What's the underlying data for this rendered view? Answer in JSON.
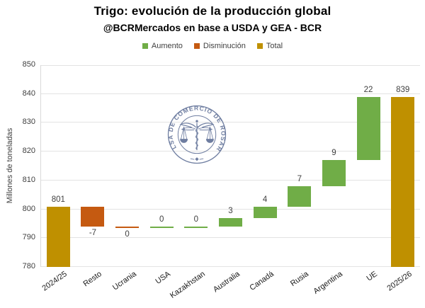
{
  "watermark": {
    "text": "BOLSA DE COMERCIO DE ROSARIO",
    "color": "#5B6C94"
  },
  "chart_data": {
    "type": "bar",
    "subtype": "waterfall",
    "title": "Trigo: evolución de la producción global",
    "subtitle": "@BCRMercados en base a USDA y GEA - BCR",
    "ylabel": "Millones de toneladas",
    "ylim": [
      780,
      850
    ],
    "ytick_step": 10,
    "grid": true,
    "legend_position": "top",
    "legend": [
      {
        "label": "Aumento",
        "color": "#70AD47"
      },
      {
        "label": "Disminución",
        "color": "#C55A11"
      },
      {
        "label": "Total",
        "color": "#BF9000"
      }
    ],
    "colors": {
      "increase": "#70AD47",
      "decrease": "#C55A11",
      "total": "#BF9000"
    },
    "categories": [
      "2024/25",
      "Resto",
      "Ucrania",
      "USA",
      "Kazakhstan",
      "Australia",
      "Canadá",
      "Rusia",
      "Argentina",
      "UE",
      "2025/26"
    ],
    "items": [
      {
        "category": "2024/25",
        "label": "801",
        "value": 801,
        "kind": "total",
        "start": 780,
        "end": 801,
        "label_side": "above"
      },
      {
        "category": "Resto",
        "label": "-7",
        "value": -7,
        "kind": "decrease",
        "start": 801,
        "end": 794,
        "label_side": "below"
      },
      {
        "category": "Ucrania",
        "label": "0",
        "value": 0,
        "kind": "decrease",
        "start": 794,
        "end": 794,
        "label_side": "below"
      },
      {
        "category": "USA",
        "label": "0",
        "value": 0,
        "kind": "increase",
        "start": 794,
        "end": 794,
        "label_side": "above"
      },
      {
        "category": "Kazakhstan",
        "label": "0",
        "value": 0,
        "kind": "increase",
        "start": 794,
        "end": 794,
        "label_side": "above"
      },
      {
        "category": "Australia",
        "label": "3",
        "value": 3,
        "kind": "increase",
        "start": 794,
        "end": 797,
        "label_side": "above"
      },
      {
        "category": "Canadá",
        "label": "4",
        "value": 4,
        "kind": "increase",
        "start": 797,
        "end": 801,
        "label_side": "above"
      },
      {
        "category": "Rusia",
        "label": "7",
        "value": 7,
        "kind": "increase",
        "start": 801,
        "end": 808,
        "label_side": "above"
      },
      {
        "category": "Argentina",
        "label": "9",
        "value": 9,
        "kind": "increase",
        "start": 808,
        "end": 817,
        "label_side": "above"
      },
      {
        "category": "UE",
        "label": "22",
        "value": 22,
        "kind": "increase",
        "start": 817,
        "end": 839,
        "label_side": "above"
      },
      {
        "category": "2025/26",
        "label": "839",
        "value": 839,
        "kind": "total",
        "start": 780,
        "end": 839,
        "label_side": "above"
      }
    ]
  }
}
